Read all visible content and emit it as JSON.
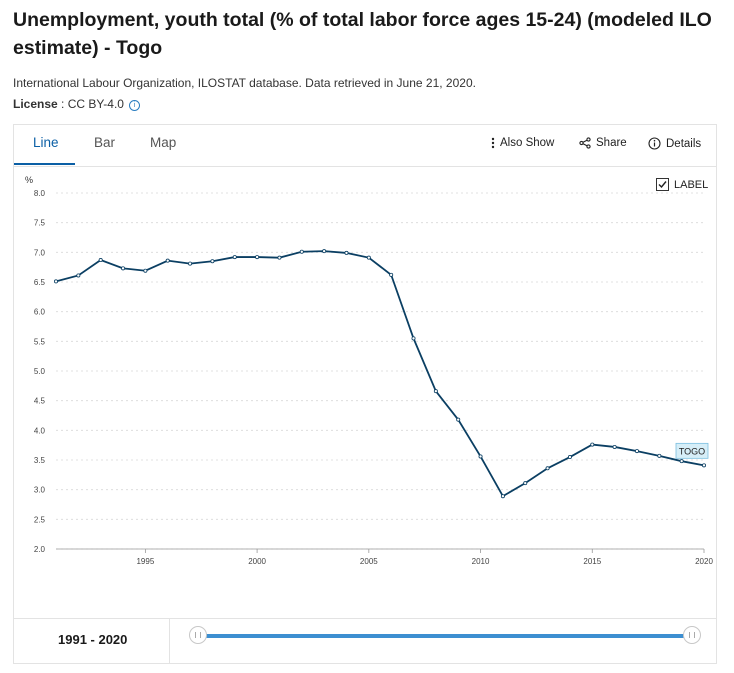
{
  "header": {
    "title": "Unemployment, youth total (% of total labor force ages 15-24) (modeled ILO estimate) - Togo",
    "source": "International Labour Organization, ILOSTAT database. Data retrieved in June 21, 2020.",
    "license_label": "License",
    "license_value": " : CC BY-4.0"
  },
  "tabs": [
    {
      "label": "Line",
      "active": true
    },
    {
      "label": "Bar",
      "active": false
    },
    {
      "label": "Map",
      "active": false
    }
  ],
  "actions": {
    "also_show": "Also Show",
    "share": "Share",
    "details": "Details"
  },
  "label_toggle": {
    "label": "LABEL",
    "checked": true
  },
  "range": {
    "label": "1991 - 2020",
    "start_fraction": 0,
    "end_fraction": 1
  },
  "colors": {
    "line": "#0b3f63",
    "accent": "#0b5fa5",
    "slider": "#3d8fd1"
  },
  "icons": {
    "also_show": "vertical-dots-icon",
    "share": "share-icon",
    "details": "info-icon"
  },
  "chart_data": {
    "type": "line",
    "title": "",
    "xlabel": "",
    "ylabel": "%",
    "xlim": [
      1991,
      2020
    ],
    "ylim": [
      2.0,
      8.0
    ],
    "yticks": [
      "2.0",
      "2.5",
      "3.0",
      "3.5",
      "4.0",
      "4.5",
      "5.0",
      "5.5",
      "6.0",
      "6.5",
      "7.0",
      "7.5",
      "8.0"
    ],
    "xticks": [
      "1995",
      "2000",
      "2005",
      "2010",
      "2015",
      "2020"
    ],
    "grid": true,
    "series": [
      {
        "name": "TOGO",
        "x": [
          1991,
          1992,
          1993,
          1994,
          1995,
          1996,
          1997,
          1998,
          1999,
          2000,
          2001,
          2002,
          2003,
          2004,
          2005,
          2006,
          2007,
          2008,
          2009,
          2010,
          2011,
          2012,
          2013,
          2014,
          2015,
          2016,
          2017,
          2018,
          2019,
          2020
        ],
        "values": [
          6.51,
          6.61,
          6.87,
          6.73,
          6.69,
          6.86,
          6.81,
          6.85,
          6.92,
          6.92,
          6.91,
          7.01,
          7.02,
          6.99,
          6.91,
          6.62,
          5.55,
          4.66,
          4.18,
          3.56,
          2.89,
          3.11,
          3.36,
          3.55,
          3.76,
          3.72,
          3.65,
          3.57,
          3.48,
          3.41
        ]
      }
    ]
  }
}
